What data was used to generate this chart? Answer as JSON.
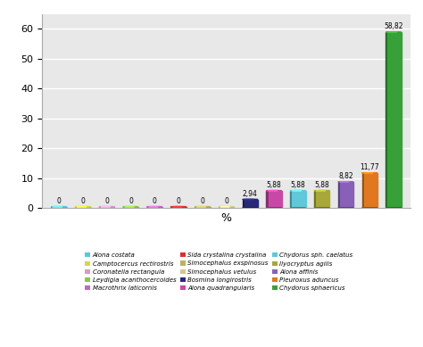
{
  "species": [
    "Alona costata",
    "Camptocercus rectirostris",
    "Coronatella rectangula",
    "Leydigia acanthocercoides",
    "Macrothrix laticornis",
    "Sida crystalina crystalina",
    "Simocephalus exspinosus",
    "Simocephalus vetulus",
    "Bosmina longirostris",
    "Alona quadrangularis",
    "Chydorus sph. caelatus",
    "Ilyocryptus agilis",
    "Alona affinis",
    "Pleuroxus aduncus",
    "Chydorus sphaericus"
  ],
  "values": [
    0,
    0,
    0,
    0,
    0,
    0,
    0,
    0,
    2.94,
    5.88,
    5.88,
    5.88,
    8.82,
    11.77,
    58.82
  ],
  "value_labels": [
    "0",
    "0",
    "0",
    "0",
    "0",
    "0",
    "0",
    "0",
    "2,94",
    "5,88",
    "5,88",
    "5,88",
    "8,82",
    "11,77",
    "58,82"
  ],
  "colors": [
    "#5CC8D8",
    "#D8D840",
    "#D898C8",
    "#88C848",
    "#C068C0",
    "#D83030",
    "#C0B060",
    "#D8C888",
    "#282878",
    "#C848A8",
    "#60C8D8",
    "#A8A838",
    "#8860B8",
    "#E07820",
    "#38A038"
  ],
  "xlabel": "%",
  "ylim": [
    0,
    65
  ],
  "yticks": [
    0,
    10,
    20,
    30,
    40,
    50,
    60
  ],
  "background_color": "#e8e8e8",
  "grid_color": "#ffffff",
  "legend_order": [
    "Alona costata",
    "Camptocercus rectirostris",
    "Coronatella rectangula",
    "Leydigia acanthocercoides",
    "Macrothrix laticornis",
    "Sida crystalina crystalina",
    "Simocephalus exspinosus",
    "Simocephalus vetulus",
    "Bosmina longirostris",
    "Alona quadrangularis",
    "Chydorus sph. caelatus",
    "Ilyocryptus agilis",
    "Alona affinis",
    "Pleuroxus aduncus",
    "Chydorus sphaericus"
  ]
}
